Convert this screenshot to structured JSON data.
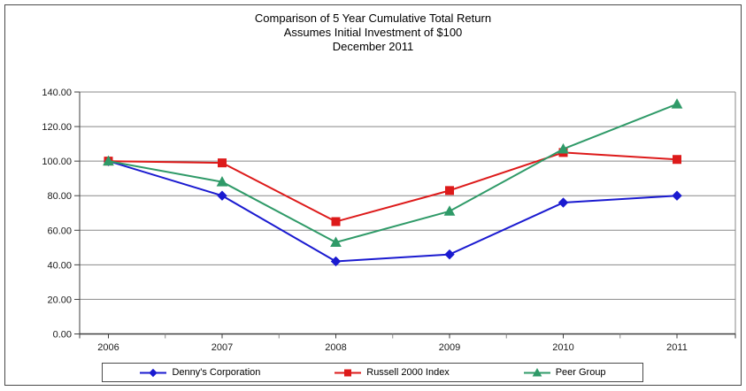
{
  "chart_data": {
    "type": "line",
    "title": "Comparison of 5 Year Cumulative Total Return",
    "subtitle1": "Assumes Initial Investment of $100",
    "subtitle2": "December 2011",
    "categories": [
      "2006",
      "2007",
      "2008",
      "2009",
      "2010",
      "2011"
    ],
    "series": [
      {
        "name": "Denny's Corporation",
        "color": "#1a1ad0",
        "marker": "diamond",
        "values": [
          100,
          80,
          42,
          46,
          76,
          80
        ]
      },
      {
        "name": "Russell 2000 Index",
        "color": "#dd1a1a",
        "marker": "square",
        "values": [
          100,
          99,
          65,
          83,
          105,
          101
        ]
      },
      {
        "name": "Peer Group",
        "color": "#2f9a68",
        "marker": "triangle",
        "values": [
          100,
          88,
          53,
          71,
          107,
          133
        ]
      }
    ],
    "ylim": [
      0,
      140
    ],
    "ytick_step": 20,
    "ytick_decimals": 2,
    "grid": true,
    "legend_position": "bottom",
    "gridline_color": "#888888",
    "axis_color": "#3f3f3f",
    "label_color": "#1a1a1a"
  }
}
